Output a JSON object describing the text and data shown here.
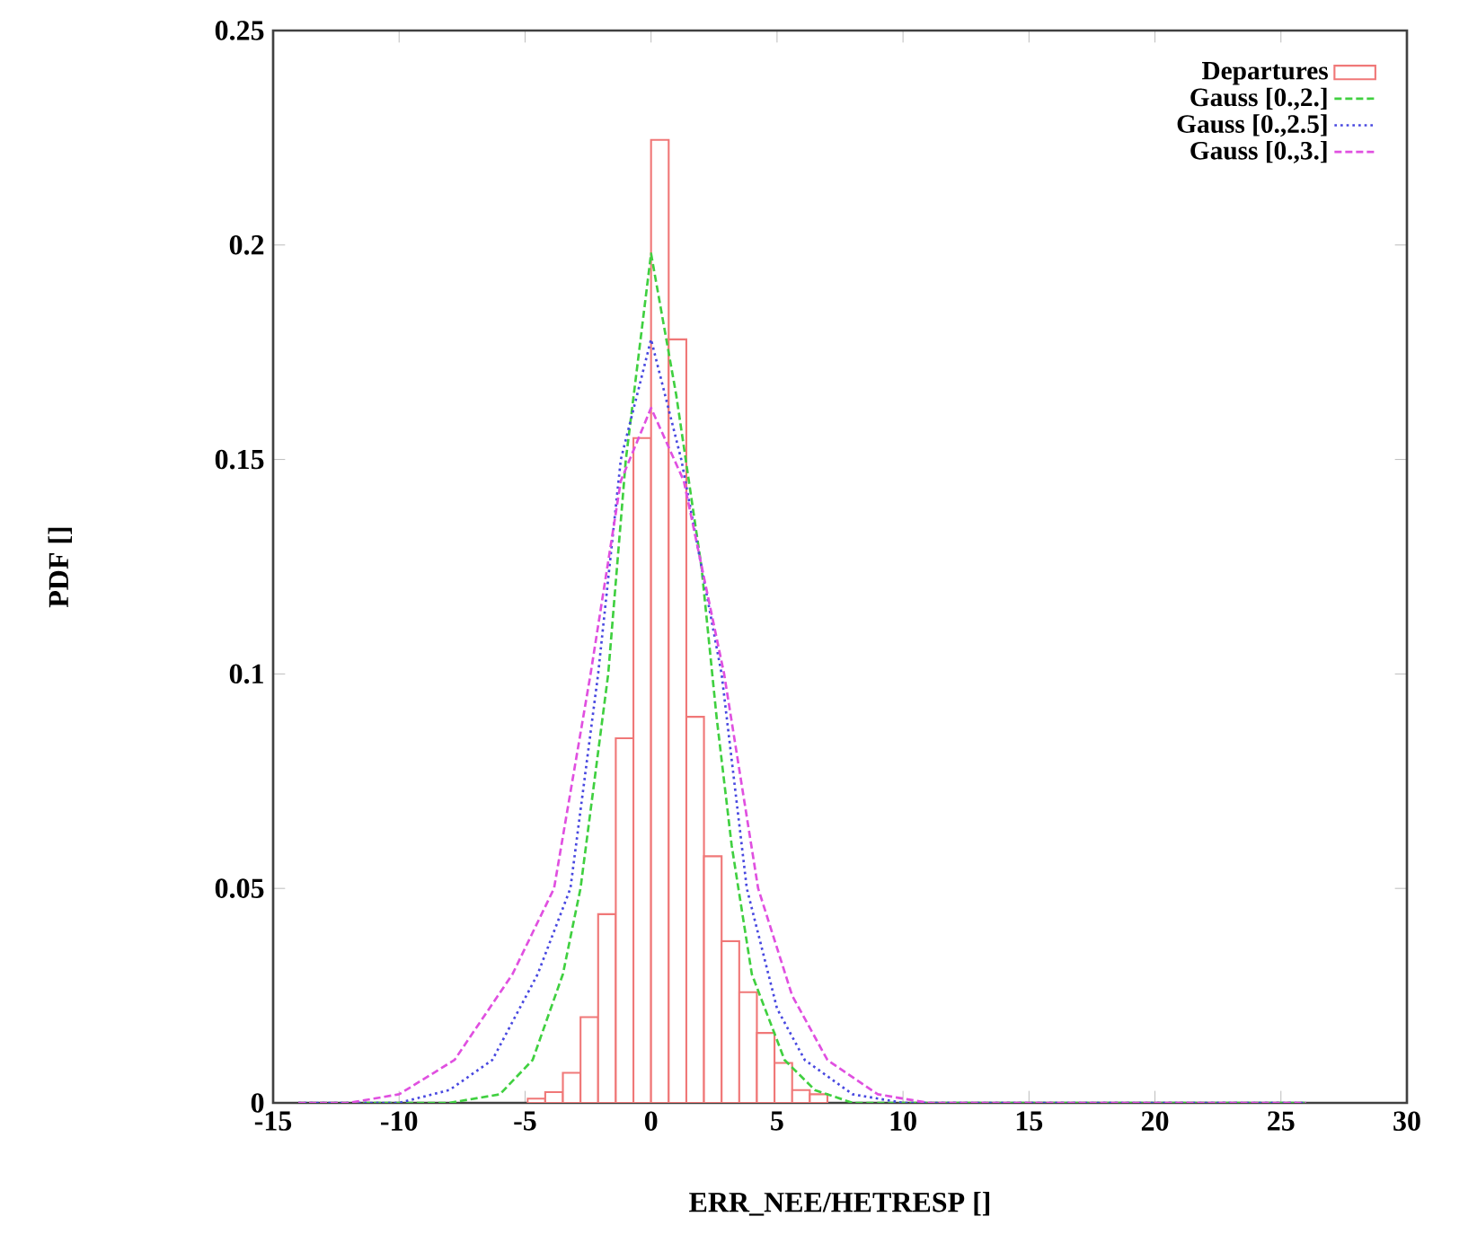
{
  "chart_data": {
    "type": "histogram",
    "xlabel": "ERR_NEE/HETRESP []",
    "ylabel": "PDF []",
    "xlim": [
      -15,
      30
    ],
    "ylim": [
      0,
      0.25
    ],
    "xticks": [
      -15,
      -10,
      -5,
      0,
      5,
      10,
      15,
      20,
      25,
      30
    ],
    "yticks": [
      0,
      0.05,
      0.1,
      0.15,
      0.2,
      0.25
    ],
    "legend": "top right",
    "grid": false,
    "series": [
      {
        "name": "Departures",
        "color": "#f07878",
        "bins": [
          -4.9,
          -4.2,
          -3.5,
          -2.8,
          -2.1,
          -1.4,
          -0.7,
          0,
          0.7,
          1.4,
          2.1,
          2.8,
          3.5,
          4.2,
          4.9,
          5.6,
          6.3,
          7.0
        ],
        "values": [
          0.001,
          0.0025,
          0.007,
          0.02,
          0.044,
          0.085,
          0.155,
          0.2245,
          0.178,
          0.09,
          0.0575,
          0.0377,
          0.0258,
          0.0163,
          0.0093,
          0.003,
          0.002
        ]
      },
      {
        "name": "Gauss [0.,2.]",
        "type": "line",
        "line_style": "dashed",
        "color": "#40d040",
        "x": [
          -14,
          -8,
          -6,
          -4.7,
          -3.5,
          -2.8,
          -1.7,
          -1,
          0,
          1,
          2,
          2.6,
          3.2,
          4,
          5.3,
          6.5,
          8,
          26
        ],
        "values": [
          0,
          0,
          0.002,
          0.01,
          0.03,
          0.05,
          0.1,
          0.15,
          0.198,
          0.165,
          0.125,
          0.09,
          0.06,
          0.03,
          0.01,
          0.003,
          0,
          0
        ]
      },
      {
        "name": "Gauss [0.,2.5]",
        "type": "line",
        "line_style": "dotted",
        "color": "#4848e0",
        "x": [
          -14,
          -10,
          -8,
          -6.3,
          -4.5,
          -3.2,
          -2.1,
          -1.2,
          0,
          1.2,
          2.8,
          3.8,
          5,
          6.1,
          8,
          10,
          26
        ],
        "values": [
          0,
          0,
          0.003,
          0.01,
          0.03,
          0.05,
          0.1,
          0.15,
          0.178,
          0.15,
          0.1,
          0.05,
          0.022,
          0.01,
          0.002,
          0,
          0
        ]
      },
      {
        "name": "Gauss [0.,3.]",
        "type": "line",
        "line_style": "dashed",
        "color": "#e050e0",
        "x": [
          -14,
          -12,
          -10,
          -7.8,
          -5.5,
          -3.85,
          -2.4,
          -1.2,
          0,
          1.3,
          2.9,
          4.25,
          5.6,
          7,
          9,
          11,
          26
        ],
        "values": [
          0,
          0,
          0.002,
          0.01,
          0.03,
          0.05,
          0.1,
          0.145,
          0.162,
          0.145,
          0.1,
          0.05,
          0.025,
          0.01,
          0.002,
          0,
          0
        ]
      }
    ]
  }
}
